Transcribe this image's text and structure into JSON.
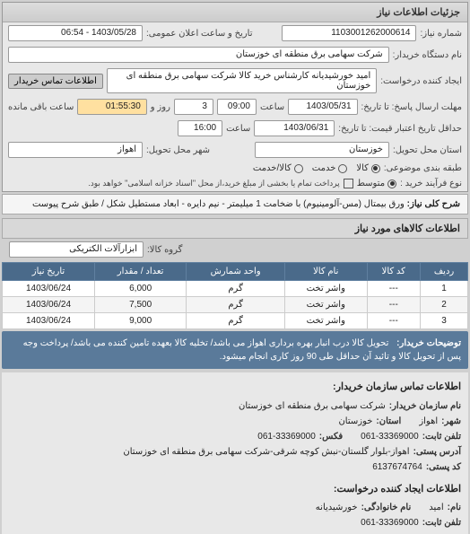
{
  "panel_title": "جزئیات اطلاعات نیاز",
  "header": {
    "req_no_label": "شماره نیاز:",
    "req_no": "1103001262000614",
    "pub_dt_label": "تاریخ و ساعت اعلان عمومی:",
    "pub_dt": "1403/05/28 - 06:54",
    "buyer_label": "نام دستگاه خریدار:",
    "buyer": "شرکت سهامی برق منطقه ای خوزستان",
    "creator_label": "ایجاد کننده درخواست:",
    "creator": "امید خورشیدیانه کارشناس خرید کالا شرکت سهامی برق منطقه ای خوزستان",
    "contact_btn": "اطلاعات تماس خریدار"
  },
  "dates": {
    "deadline_label": "مهلت ارسال پاسخ: تا تاریخ:",
    "deadline_date": "1403/05/31",
    "at": "ساعت",
    "deadline_time": "09:00",
    "days_lbl": "روز و",
    "days": "3",
    "remain_lbl": "ساعت باقی مانده",
    "remain": "01:55:30",
    "valid_label": "حداقل تاریخ اعتبار قیمت: تا تاریخ:",
    "valid_date": "1403/06/31",
    "valid_time": "16:00",
    "state_label": "استان محل تحویل:",
    "state": "خوزستان",
    "city_label": "شهر محل تحویل:",
    "city": "اهواز"
  },
  "options": {
    "pack_label": "طبقه بندی موضوعی:",
    "o_goods": "کالا",
    "o_service": "خدمت",
    "o_both": "کالا/خدمت",
    "proc_label": "نوع فرآیند خرید :",
    "o_mid": "متوسط",
    "proc_note": "پرداخت تمام یا بخشی از مبلغ خرید،از محل \"اسناد خزانه اسلامی\" خواهد بود."
  },
  "need": {
    "title_label": "شرح کلی نیاز:",
    "title": "ورق بیمتال (مس-آلومینیوم) با ضخامت 1 میلیمتر - نیم دایره - ابعاد مستطیل شکل / طبق شرح پیوست"
  },
  "goods_header": "اطلاعات کالاهای مورد نیاز",
  "group_label": "گروه کالا:",
  "group": "ابزارآلات الکتریکی",
  "table": {
    "cols": [
      "ردیف",
      "کد کالا",
      "نام کالا",
      "واحد شمارش",
      "تعداد / مقدار",
      "تاریخ نیاز"
    ],
    "rows": [
      [
        "1",
        "---",
        "واشر تخت",
        "گرم",
        "6,000",
        "1403/06/24"
      ],
      [
        "2",
        "---",
        "واشر تخت",
        "گرم",
        "7,500",
        "1403/06/24"
      ],
      [
        "3",
        "---",
        "واشر تخت",
        "گرم",
        "9,000",
        "1403/06/24"
      ]
    ]
  },
  "note": {
    "label": "توضیحات خریدار:",
    "text": "تحویل کالا درب انبار بهره برداری اهواز می باشد/ تخلیه کالا بعهده تامین کننده می باشد/ پرداخت وجه پس از تحویل کالا و تائید آن حداقل طی 90 روز کاری انجام میشود."
  },
  "contact": {
    "title": "اطلاعات تماس سازمان خریدار:",
    "org_l": "نام سازمان خریدار:",
    "org": "شرکت سهامی برق منطقه ای خوزستان",
    "city_l": "شهر:",
    "city": "اهواز",
    "prov_l": "استان:",
    "prov": "خوزستان",
    "tel_l": "تلفن ثابت:",
    "tel": "061-33369000",
    "fax_l": "فکس:",
    "fax": "061-33369000",
    "addr_l": "آدرس پستی:",
    "addr": "اهواز-بلوار گلستان-نبش کوچه شرقی-شرکت سهامی برق منطقه ای خوزستان",
    "post_l": "کد پستی:",
    "post": "6137674764",
    "creator_title": "اطلاعات ایجاد کننده درخواست:",
    "name_l": "نام:",
    "name": "امید",
    "fam_l": "نام خانوادگی:",
    "fam": "خورشیدیانه",
    "ctel_l": "تلفن ثابت:",
    "ctel": "061-33369000"
  }
}
